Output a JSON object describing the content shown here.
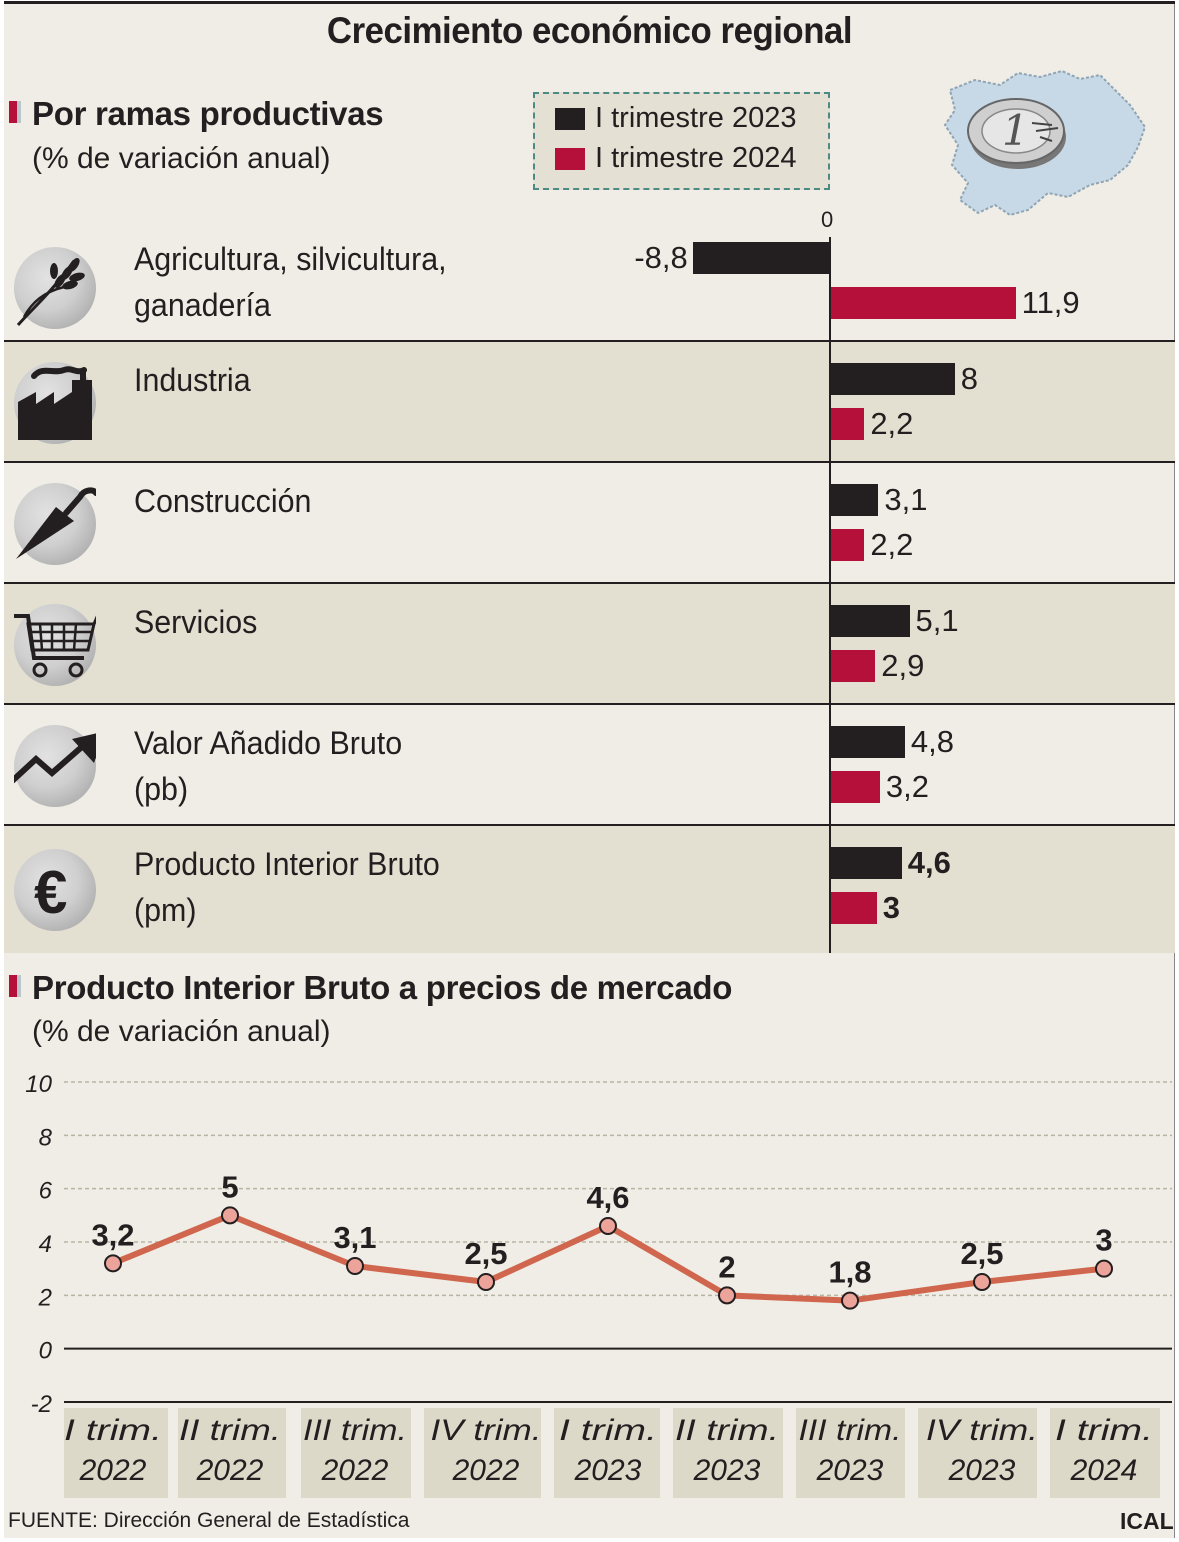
{
  "title": "Crecimiento económico regional",
  "section1": {
    "title": "Por ramas productivas",
    "subtitle": "(% de variación anual)"
  },
  "legend": {
    "items": [
      {
        "label": "I trimestre 2023",
        "color": "#231f20"
      },
      {
        "label": "I trimestre 2024",
        "color": "#b5103a"
      }
    ]
  },
  "zero_label": "0",
  "section2": {
    "title": "Producto Interior Bruto a precios de mercado",
    "subtitle": "(% de variación anual)"
  },
  "footer": {
    "source": "FUENTE: Dirección General de Estadística",
    "brand": "ICAL"
  },
  "chart_data": [
    {
      "type": "bar",
      "orientation": "horizontal",
      "categories": [
        {
          "line1": "Agricultura, silvicultura,",
          "line2": "ganadería",
          "icon": "wheat-icon"
        },
        {
          "line1": "Industria",
          "line2": "",
          "icon": "factory-icon"
        },
        {
          "line1": "Construcción",
          "line2": "",
          "icon": "trowel-icon"
        },
        {
          "line1": "Servicios",
          "line2": "",
          "icon": "shopping-cart-icon"
        },
        {
          "line1": "Valor Añadido Bruto",
          "line2": "(pb)",
          "icon": "trend-arrow-icon"
        },
        {
          "line1": "Producto Interior Bruto",
          "line2": "(pm)",
          "icon": "euro-icon"
        }
      ],
      "series": [
        {
          "name": "I trimestre 2023",
          "color": "#231f20",
          "values": [
            -8.8,
            8,
            3.1,
            5.1,
            4.8,
            4.6
          ],
          "labels": [
            "-8,8",
            "8",
            "3,1",
            "5,1",
            "4,8",
            "4,6"
          ]
        },
        {
          "name": "I trimestre 2024",
          "color": "#b5103a",
          "values": [
            11.9,
            2.2,
            2.2,
            2.9,
            3.2,
            3
          ],
          "labels": [
            "11,9",
            "2,2",
            "2,2",
            "2,9",
            "3,2",
            "3"
          ]
        }
      ],
      "bold_last_labels": true
    },
    {
      "type": "line",
      "x": [
        {
          "line1": "I trim.",
          "line2": "2022"
        },
        {
          "line1": "II trim.",
          "line2": "2022"
        },
        {
          "line1": "III trim.",
          "line2": "2022"
        },
        {
          "line1": "IV trim.",
          "line2": "2022"
        },
        {
          "line1": "I trim.",
          "line2": "2023"
        },
        {
          "line1": "II trim.",
          "line2": "2023"
        },
        {
          "line1": "III trim.",
          "line2": "2023"
        },
        {
          "line1": "IV trim.",
          "line2": "2023"
        },
        {
          "line1": "I trim.",
          "line2": "2024"
        }
      ],
      "values": [
        3.2,
        5,
        3.1,
        2.5,
        4.6,
        2,
        1.8,
        2.5,
        3
      ],
      "labels": [
        "3,2",
        "5",
        "3,1",
        "2,5",
        "4,6",
        "2",
        "1,8",
        "2,5",
        "3"
      ],
      "ylim": [
        -2,
        10
      ],
      "yticks": [
        "10",
        "8",
        "6",
        "4",
        "2",
        "0",
        "-2"
      ],
      "line_color": "#d0664e",
      "marker_fill": "#eba39a",
      "grid": true
    }
  ]
}
